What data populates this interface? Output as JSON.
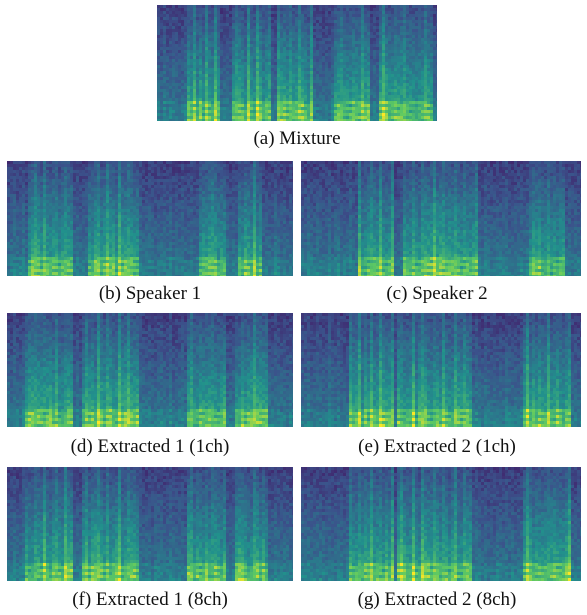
{
  "figure": {
    "panels": [
      {
        "id": "a",
        "caption": "(a) Mixture",
        "profile": "mixture"
      },
      {
        "id": "b",
        "caption": "(b) Speaker 1",
        "profile": "speaker1"
      },
      {
        "id": "c",
        "caption": "(c) Speaker 2",
        "profile": "speaker2"
      },
      {
        "id": "d",
        "caption": "(d) Extracted 1 (1ch)",
        "profile": "extracted1"
      },
      {
        "id": "e",
        "caption": "(e) Extracted 2 (1ch)",
        "profile": "extracted2"
      },
      {
        "id": "f",
        "caption": "(f) Extracted 1 (8ch)",
        "profile": "extracted1"
      },
      {
        "id": "g",
        "caption": "(g) Extracted 2 (8ch)",
        "profile": "extracted2"
      }
    ],
    "colormap": [
      "#440154",
      "#3b528b",
      "#21918c",
      "#5ec962",
      "#fde725"
    ]
  }
}
